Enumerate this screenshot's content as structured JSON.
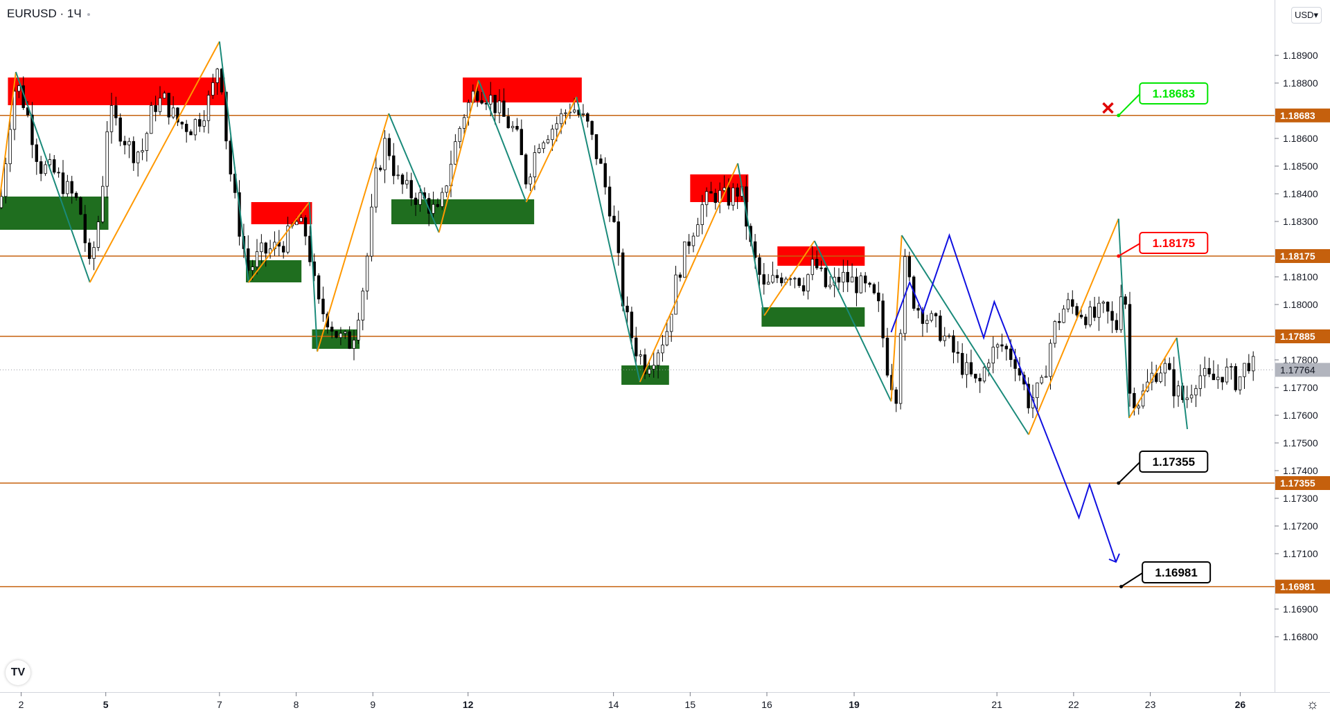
{
  "header": {
    "symbol": "EURUSD · 1Ч",
    "currency": "USD",
    "currency_chevron": "▾"
  },
  "logo_text": "TV",
  "settings_icon": "☼",
  "colors": {
    "bull_zone": "#1f6e1f",
    "bear_zone": "#ff0000",
    "level": "#c5600d",
    "zig_up": "#ff9800",
    "zig_down": "#1a8a7a",
    "forecast": "#1010e0",
    "label_green": "#00e600",
    "label_red": "#ff0000",
    "label_black": "#000000"
  },
  "chart_data": {
    "type": "candlestick",
    "ylim": [
      1.166,
      1.191
    ],
    "y_ticks": [
      "1.18900",
      "1.18800",
      "1.18600",
      "1.18500",
      "1.18400",
      "1.18300",
      "1.18100",
      "1.18000",
      "1.17800",
      "1.17700",
      "1.17600",
      "1.17500",
      "1.17400",
      "1.17300",
      "1.17200",
      "1.17100",
      "1.16900",
      "1.16800"
    ],
    "x_ticks": [
      {
        "label": "2",
        "bold": false,
        "x": 0.8
      },
      {
        "label": "5",
        "bold": true,
        "x": 4.0
      },
      {
        "label": "7",
        "bold": false,
        "x": 8.3
      },
      {
        "label": "8",
        "bold": false,
        "x": 11.2
      },
      {
        "label": "9",
        "bold": false,
        "x": 14.1
      },
      {
        "label": "12",
        "bold": true,
        "x": 17.7
      },
      {
        "label": "14",
        "bold": false,
        "x": 23.2
      },
      {
        "label": "15",
        "bold": false,
        "x": 26.1
      },
      {
        "label": "16",
        "bold": false,
        "x": 29.0
      },
      {
        "label": "19",
        "bold": true,
        "x": 32.3
      },
      {
        "label": "21",
        "bold": false,
        "x": 37.7
      },
      {
        "label": "22",
        "bold": false,
        "x": 40.6
      },
      {
        "label": "23",
        "bold": false,
        "x": 43.5
      },
      {
        "label": "26",
        "bold": true,
        "x": 46.9
      }
    ],
    "price_levels": [
      {
        "price": 1.18683,
        "label": "1.18683"
      },
      {
        "price": 1.18175,
        "label": "1.18175"
      },
      {
        "price": 1.17885,
        "label": "1.17885"
      },
      {
        "price": 1.17355,
        "label": "1.17355"
      },
      {
        "price": 1.16981,
        "label": "1.16981"
      }
    ],
    "current_price": {
      "price": 1.17764,
      "label": "1.17764"
    },
    "supply_zones": [
      {
        "x0": 0.3,
        "x1": 8.5,
        "y0": 1.1872,
        "y1": 1.1882
      },
      {
        "x0": 9.5,
        "x1": 11.8,
        "y0": 1.1829,
        "y1": 1.1837
      },
      {
        "x0": 17.5,
        "x1": 22.0,
        "y0": 1.1873,
        "y1": 1.1882
      },
      {
        "x0": 26.1,
        "x1": 28.3,
        "y0": 1.1837,
        "y1": 1.1847
      },
      {
        "x0": 29.4,
        "x1": 32.7,
        "y0": 1.1814,
        "y1": 1.1821
      }
    ],
    "demand_zones": [
      {
        "x0": 0.0,
        "x1": 4.1,
        "y0": 1.1827,
        "y1": 1.1839
      },
      {
        "x0": 9.3,
        "x1": 11.4,
        "y0": 1.1808,
        "y1": 1.1816
      },
      {
        "x0": 11.8,
        "x1": 13.6,
        "y0": 1.1784,
        "y1": 1.1791
      },
      {
        "x0": 14.8,
        "x1": 20.2,
        "y0": 1.1829,
        "y1": 1.1838
      },
      {
        "x0": 23.5,
        "x1": 25.3,
        "y0": 1.1771,
        "y1": 1.1778
      },
      {
        "x0": 28.8,
        "x1": 32.7,
        "y0": 1.1792,
        "y1": 1.1799
      }
    ],
    "zigzag": [
      [
        0.0,
        1.1839
      ],
      [
        0.6,
        1.1884
      ],
      [
        3.4,
        1.1808
      ],
      [
        8.3,
        1.1895
      ],
      [
        9.4,
        1.1808
      ],
      [
        11.7,
        1.1837
      ],
      [
        12.0,
        1.1783
      ],
      [
        14.7,
        1.1869
      ],
      [
        16.6,
        1.1826
      ],
      [
        18.1,
        1.1881
      ],
      [
        19.9,
        1.1837
      ],
      [
        21.8,
        1.1875
      ],
      [
        24.2,
        1.1772
      ],
      [
        27.9,
        1.1851
      ],
      [
        28.9,
        1.1796
      ],
      [
        30.8,
        1.1823
      ],
      [
        33.7,
        1.1765
      ],
      [
        34.1,
        1.1825
      ],
      [
        38.9,
        1.1753
      ],
      [
        42.3,
        1.1831
      ],
      [
        42.7,
        1.1759
      ],
      [
        44.5,
        1.1788
      ],
      [
        44.9,
        1.1755
      ]
    ],
    "forecast_path": [
      [
        33.7,
        1.179
      ],
      [
        34.4,
        1.1808
      ],
      [
        34.9,
        1.1797
      ],
      [
        35.9,
        1.1825
      ],
      [
        37.2,
        1.1788
      ],
      [
        37.6,
        1.1801
      ],
      [
        40.8,
        1.1723
      ],
      [
        41.2,
        1.1735
      ],
      [
        42.2,
        1.1707
      ]
    ],
    "forecast_cross": [
      41.9,
      1.1871
    ],
    "callouts": [
      {
        "label": "1.18683",
        "anchor": [
          42.3,
          1.18683
        ],
        "box": [
          43.1,
          1.188
        ],
        "color": "green"
      },
      {
        "label": "1.18175",
        "anchor": [
          42.3,
          1.18175
        ],
        "box": [
          43.1,
          1.1826
        ],
        "color": "red"
      },
      {
        "label": "1.17355",
        "anchor": [
          42.3,
          1.17355
        ],
        "box": [
          43.1,
          1.1747
        ],
        "color": "black"
      },
      {
        "label": "1.16981",
        "anchor": [
          42.4,
          1.16981
        ],
        "box": [
          43.2,
          1.1707
        ],
        "color": "black"
      }
    ],
    "close_path": [
      [
        0.0,
        1.1835
      ],
      [
        0.4,
        1.1868
      ],
      [
        0.6,
        1.1881
      ],
      [
        1.0,
        1.187
      ],
      [
        1.5,
        1.185
      ],
      [
        2.0,
        1.1848
      ],
      [
        2.5,
        1.1842
      ],
      [
        3.0,
        1.1836
      ],
      [
        3.4,
        1.1812
      ],
      [
        3.8,
        1.1835
      ],
      [
        4.1,
        1.187
      ],
      [
        4.6,
        1.1862
      ],
      [
        5.0,
        1.1855
      ],
      [
        5.4,
        1.1856
      ],
      [
        5.8,
        1.1872
      ],
      [
        6.2,
        1.1874
      ],
      [
        6.7,
        1.1866
      ],
      [
        7.2,
        1.1864
      ],
      [
        7.6,
        1.1868
      ],
      [
        8.0,
        1.1876
      ],
      [
        8.3,
        1.189
      ],
      [
        8.6,
        1.1855
      ],
      [
        9.0,
        1.183
      ],
      [
        9.4,
        1.1812
      ],
      [
        9.8,
        1.1818
      ],
      [
        10.3,
        1.182
      ],
      [
        10.8,
        1.1823
      ],
      [
        11.2,
        1.183
      ],
      [
        11.6,
        1.1825
      ],
      [
        12.0,
        1.18
      ],
      [
        12.4,
        1.1795
      ],
      [
        12.8,
        1.1788
      ],
      [
        13.3,
        1.1786
      ],
      [
        13.8,
        1.181
      ],
      [
        14.2,
        1.1845
      ],
      [
        14.6,
        1.186
      ],
      [
        15.0,
        1.1845
      ],
      [
        15.5,
        1.184
      ],
      [
        16.0,
        1.1838
      ],
      [
        16.6,
        1.1832
      ],
      [
        17.0,
        1.185
      ],
      [
        17.5,
        1.1868
      ],
      [
        18.0,
        1.1878
      ],
      [
        18.5,
        1.1875
      ],
      [
        19.0,
        1.1868
      ],
      [
        19.5,
        1.1862
      ],
      [
        19.9,
        1.1845
      ],
      [
        20.4,
        1.186
      ],
      [
        21.0,
        1.1865
      ],
      [
        21.6,
        1.1872
      ],
      [
        22.2,
        1.1865
      ],
      [
        22.7,
        1.185
      ],
      [
        23.2,
        1.183
      ],
      [
        23.6,
        1.1798
      ],
      [
        24.0,
        1.1785
      ],
      [
        24.4,
        1.1778
      ],
      [
        24.8,
        1.1783
      ],
      [
        25.2,
        1.179
      ],
      [
        25.6,
        1.181
      ],
      [
        26.0,
        1.1822
      ],
      [
        26.5,
        1.1835
      ],
      [
        27.0,
        1.184
      ],
      [
        27.5,
        1.1838
      ],
      [
        28.0,
        1.1842
      ],
      [
        28.4,
        1.182
      ],
      [
        28.9,
        1.1805
      ],
      [
        29.4,
        1.181
      ],
      [
        29.9,
        1.1812
      ],
      [
        30.4,
        1.1808
      ],
      [
        30.8,
        1.1815
      ],
      [
        31.3,
        1.1805
      ],
      [
        31.8,
        1.181
      ],
      [
        32.3,
        1.1808
      ],
      [
        32.8,
        1.1805
      ],
      [
        33.2,
        1.18
      ],
      [
        33.6,
        1.1775
      ],
      [
        33.9,
        1.1768
      ],
      [
        34.2,
        1.1815
      ],
      [
        34.6,
        1.18
      ],
      [
        35.1,
        1.1795
      ],
      [
        35.6,
        1.179
      ],
      [
        36.1,
        1.1782
      ],
      [
        36.6,
        1.1775
      ],
      [
        37.0,
        1.177
      ],
      [
        37.4,
        1.1782
      ],
      [
        37.9,
        1.1785
      ],
      [
        38.4,
        1.178
      ],
      [
        38.9,
        1.1765
      ],
      [
        39.4,
        1.177
      ],
      [
        39.8,
        1.179
      ],
      [
        40.3,
        1.18
      ],
      [
        40.8,
        1.1798
      ],
      [
        41.3,
        1.1795
      ],
      [
        41.8,
        1.1798
      ],
      [
        42.2,
        1.179
      ],
      [
        42.5,
        1.1815
      ],
      [
        42.7,
        1.1768
      ],
      [
        43.1,
        1.1765
      ],
      [
        43.6,
        1.1775
      ],
      [
        44.0,
        1.1778
      ],
      [
        44.4,
        1.177
      ],
      [
        44.8,
        1.1765
      ],
      [
        45.3,
        1.1775
      ],
      [
        45.8,
        1.1772
      ],
      [
        46.3,
        1.1776
      ],
      [
        46.8,
        1.1772
      ],
      [
        47.2,
        1.178
      ],
      [
        47.5,
        1.1776
      ]
    ]
  }
}
